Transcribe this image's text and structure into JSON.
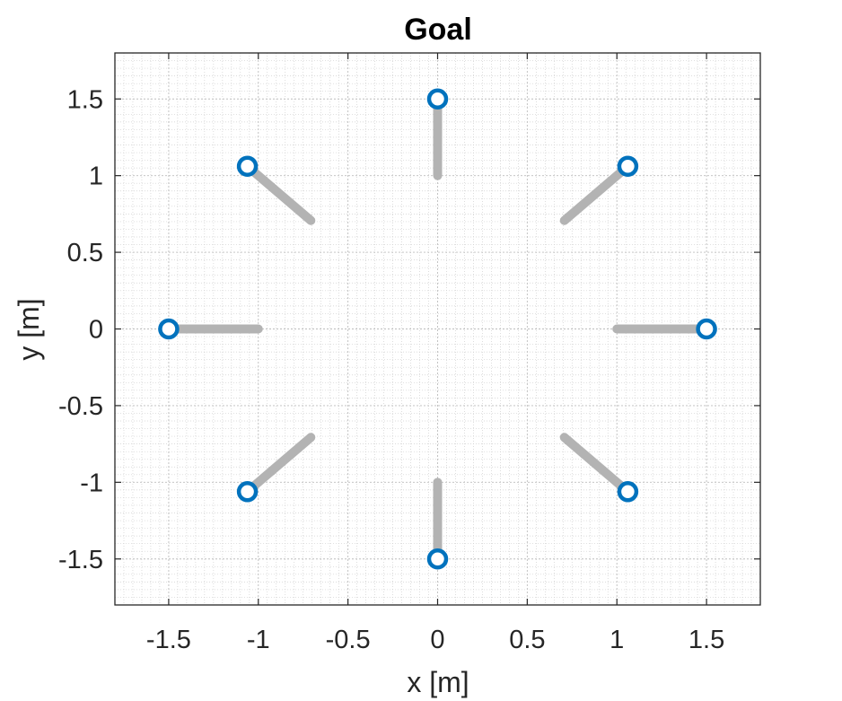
{
  "chart_data": {
    "type": "scatter",
    "title": "Goal",
    "xlabel": "x [m]",
    "ylabel": "y [m]",
    "xlim": [
      -1.8,
      1.8
    ],
    "ylim": [
      -1.8,
      1.8
    ],
    "xticks": [
      -1.5,
      -1,
      -0.5,
      0,
      0.5,
      1,
      1.5
    ],
    "yticks": [
      -1.5,
      -1,
      -0.5,
      0,
      0.5,
      1,
      1.5
    ],
    "xtick_labels": [
      "-1.5",
      "-1",
      "-0.5",
      "0",
      "0.5",
      "1",
      "1.5"
    ],
    "ytick_labels": [
      "-1.5",
      "-1",
      "-0.5",
      "0",
      "0.5",
      "1",
      "1.5"
    ],
    "grid": true,
    "minor_grid": true,
    "colors": {
      "trajectory": "#b3b3b3",
      "goal_marker": "#0072bd",
      "grid": "#cfcfcf",
      "axes": "#262626"
    },
    "trajectories": [
      {
        "x": [
          1.0,
          1.5
        ],
        "y": [
          0.0,
          0.0
        ]
      },
      {
        "x": [
          0.707,
          1.061
        ],
        "y": [
          0.707,
          1.061
        ]
      },
      {
        "x": [
          0.0,
          0.0
        ],
        "y": [
          1.0,
          1.5
        ]
      },
      {
        "x": [
          -0.707,
          -1.061
        ],
        "y": [
          0.707,
          1.061
        ]
      },
      {
        "x": [
          -1.0,
          -1.5
        ],
        "y": [
          0.0,
          0.0
        ]
      },
      {
        "x": [
          -0.707,
          -1.061
        ],
        "y": [
          -0.707,
          -1.061
        ]
      },
      {
        "x": [
          0.0,
          0.0
        ],
        "y": [
          -1.0,
          -1.5
        ]
      },
      {
        "x": [
          0.707,
          1.061
        ],
        "y": [
          -0.707,
          -1.061
        ]
      }
    ],
    "goals": {
      "x": [
        1.5,
        1.061,
        0.0,
        -1.061,
        -1.5,
        -1.061,
        0.0,
        1.061
      ],
      "y": [
        0.0,
        1.061,
        1.5,
        1.061,
        0.0,
        -1.061,
        -1.5,
        -1.061
      ]
    }
  }
}
